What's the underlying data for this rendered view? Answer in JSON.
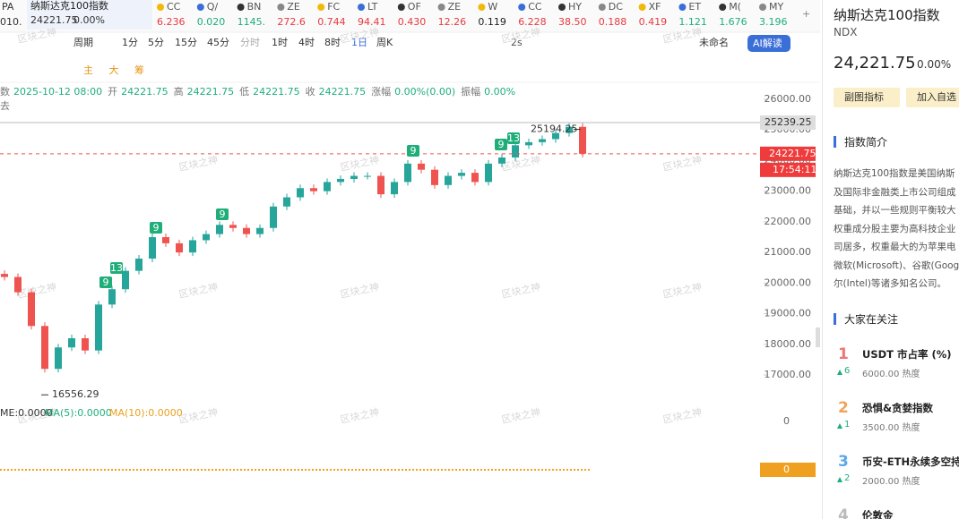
{
  "ticker": {
    "first": {
      "cut_code": "PA",
      "cut_value": "010.",
      "name": "纳斯达克100指数",
      "price": "24221.75",
      "change": "0.00%"
    },
    "items": [
      {
        "code": "CC",
        "value": "6.236",
        "color": "#e8393f"
      },
      {
        "code": "Q/",
        "value": "0.020",
        "color": "#1fae7a"
      },
      {
        "code": "BN",
        "value": "1145.",
        "color": "#1fae7a"
      },
      {
        "code": "ZE",
        "value": "272.6",
        "color": "#e8393f"
      },
      {
        "code": "FC",
        "value": "0.744",
        "color": "#e8393f"
      },
      {
        "code": "LT",
        "value": "94.41",
        "color": "#e8393f"
      },
      {
        "code": "OF",
        "value": "0.430",
        "color": "#e8393f"
      },
      {
        "code": "ZE",
        "value": "12.26",
        "color": "#e8393f"
      },
      {
        "code": "W",
        "value": "0.119",
        "color": "#222222"
      },
      {
        "code": "CC",
        "value": "6.228",
        "color": "#e8393f"
      },
      {
        "code": "HY",
        "value": "38.50",
        "color": "#e8393f"
      },
      {
        "code": "DC",
        "value": "0.188",
        "color": "#e8393f"
      },
      {
        "code": "XF",
        "value": "0.419",
        "color": "#e8393f"
      },
      {
        "code": "ET",
        "value": "1.121",
        "color": "#1fae7a"
      },
      {
        "code": "M(",
        "value": "1.676",
        "color": "#1fae7a"
      },
      {
        "code": "MY",
        "value": "3.196",
        "color": "#1fae7a"
      }
    ]
  },
  "toolbar": {
    "period_label": "周期",
    "periods": [
      "1分",
      "5分",
      "15分",
      "45分",
      "分时",
      "1时",
      "4时",
      "8时",
      "1日",
      "周K"
    ],
    "active_period": "1日",
    "disabled_period": "分时",
    "refresh": "2s",
    "layout_name": "未命名",
    "ai_button": "AI解读",
    "indicator_tabs": [
      "主",
      "大",
      "筹"
    ]
  },
  "info_bar": {
    "items": [
      {
        "label": "数",
        "value": "2025-10-12 08:00"
      },
      {
        "label": "开",
        "value": "24221.75"
      },
      {
        "label": "高",
        "value": "24221.75"
      },
      {
        "label": "低",
        "value": "24221.75"
      },
      {
        "label": "收",
        "value": "24221.75"
      },
      {
        "label": "涨幅",
        "value": "0.00%(0.00)"
      },
      {
        "label": "振幅",
        "value": "0.00%"
      }
    ],
    "second_line": "去"
  },
  "watermark": "区块之神",
  "chart_data": {
    "type": "candlestick",
    "open": [
      20300,
      20200,
      19700,
      18600,
      17200,
      17900,
      18200,
      17800,
      19300,
      19800,
      20400,
      20800,
      21500,
      21300,
      21000,
      21400,
      21600,
      21900,
      21800,
      21600,
      21800,
      22500,
      22800,
      23100,
      23000,
      23300,
      23400,
      23500,
      23500,
      22900,
      23300,
      23900,
      23700,
      23200,
      23500,
      23600,
      23300,
      23900,
      24100,
      24500,
      24600,
      24700,
      24900,
      25100
    ],
    "close": [
      20200,
      19700,
      18600,
      17200,
      17900,
      18200,
      17800,
      19300,
      19800,
      20400,
      20800,
      21500,
      21300,
      21000,
      21400,
      21600,
      21900,
      21800,
      21600,
      21800,
      22500,
      22800,
      23100,
      23000,
      23300,
      23400,
      23500,
      23500,
      22900,
      23300,
      23900,
      23700,
      23200,
      23500,
      23600,
      23300,
      23900,
      24100,
      24500,
      24600,
      24700,
      24900,
      25100,
      24221.75
    ],
    "up_color": "#26a69a",
    "down_color": "#ef5350",
    "ylim": [
      16400,
      26300
    ],
    "yticks": [
      {
        "value": 26000,
        "label": "26000.00"
      },
      {
        "value": 25000,
        "label": "25000.00"
      },
      {
        "value": 24000,
        "label": "24000.00"
      },
      {
        "value": 23000,
        "label": "23000.00"
      },
      {
        "value": 22000,
        "label": "22000.00"
      },
      {
        "value": 21000,
        "label": "21000.00"
      },
      {
        "value": 20000,
        "label": "20000.00"
      },
      {
        "value": 19000,
        "label": "19000.00"
      },
      {
        "value": 18000,
        "label": "18000.00"
      },
      {
        "value": 17000,
        "label": "17000.00"
      }
    ],
    "high_label": 25194.25,
    "low_label": 16556.29,
    "high_line": 25239.25,
    "last_price": 24221.75,
    "countdown": "17:54:11",
    "signals": [
      "13",
      "9",
      "9",
      "9",
      "9",
      "9",
      "13"
    ]
  },
  "sub_chart": {
    "volume": "ME:0.0000",
    "ma5": "MA(5):0.0000",
    "ma10": "MA(10):0.0000",
    "axis_zero": "0",
    "tag_zero": "0"
  },
  "side_panel": {
    "title": "纳斯达克100指数",
    "symbol": "NDX",
    "price": "24,221.75",
    "change": "0.00%",
    "buttons": [
      "副图指标",
      "加入自选"
    ],
    "intro_title": "指数简介",
    "intro_lines": [
      "纳斯达克100指数是美国纳斯",
      "及国际非金融类上市公司组成",
      "基础，并以一些规则平衡较大",
      "权重成分股主要为高科技企业",
      "司居多，权重最大的为苹果电",
      "微软(Microsoft)、谷歌(Goog",
      "尔(Intel)等诸多知名公司。"
    ],
    "watch_title": "大家在关注",
    "watch": [
      {
        "rank": "1",
        "name": "USDT 市占率 (%)",
        "delta": "6",
        "heat": "6000.00 热度"
      },
      {
        "rank": "2",
        "name": "恐惧&贪婪指数",
        "delta": "1",
        "heat": "3500.00 热度"
      },
      {
        "rank": "3",
        "name": "币安-ETH永续多空持",
        "delta": "2",
        "heat": "2000.00 热度"
      },
      {
        "rank": "4",
        "name": "伦敦金"
      }
    ]
  }
}
